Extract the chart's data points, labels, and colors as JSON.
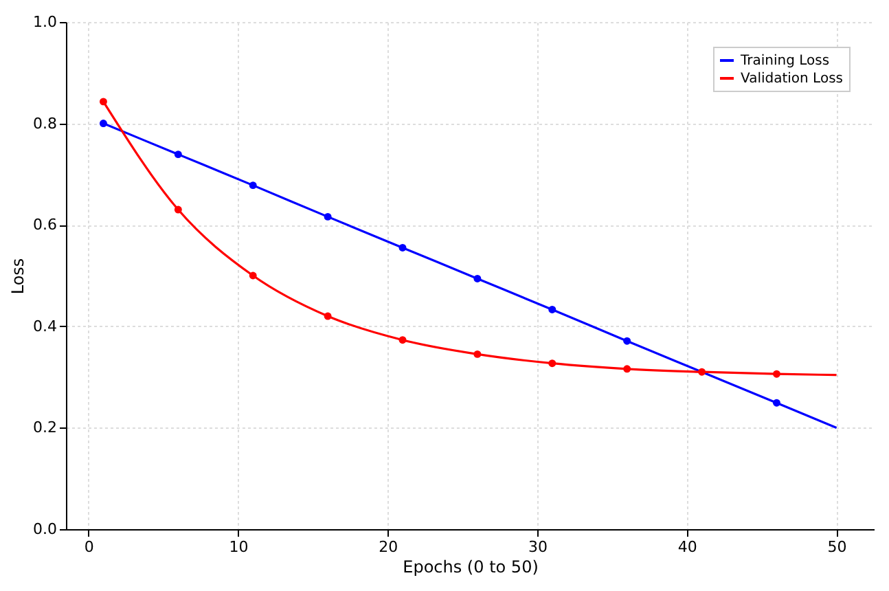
{
  "chart_data": {
    "type": "line",
    "xlabel": "Epochs (0 to 50)",
    "ylabel": "Loss",
    "xlim": [
      -1.5,
      52.5
    ],
    "ylim": [
      0,
      1.0
    ],
    "xticks": [
      0,
      10,
      20,
      30,
      40,
      50
    ],
    "yticks": [
      {
        "value": 0,
        "label": "0.0"
      },
      0.2,
      0.4,
      0.6,
      0.8,
      {
        "value": 1,
        "label": "1.0"
      }
    ],
    "grid": true,
    "legend": "top right",
    "line_style": "solid",
    "series": [
      {
        "name": "Training Loss",
        "color": "#0000ff",
        "x": [
          1,
          6,
          11,
          16,
          21,
          26,
          31,
          36,
          41,
          46,
          50
        ],
        "values": [
          0.8,
          0.739,
          0.678,
          0.616,
          0.555,
          0.494,
          0.433,
          0.371,
          0.31,
          0.249,
          0.2
        ]
      },
      {
        "name": "Validation Loss",
        "color": "#ff0000",
        "x": [
          1,
          6,
          11,
          16,
          21,
          26,
          31,
          36,
          41,
          46,
          50
        ],
        "values": [
          0.843,
          0.63,
          0.5,
          0.42,
          0.373,
          0.345,
          0.327,
          0.316,
          0.31,
          0.306,
          0.304
        ]
      },
      {
        "color": "#0000ff",
        "type": "scatter",
        "marker": "circle",
        "x": [
          1,
          6,
          11,
          16,
          21,
          26,
          31,
          36,
          41,
          46
        ],
        "values": [
          0.8,
          0.739,
          0.678,
          0.616,
          0.555,
          0.494,
          0.433,
          0.371,
          null,
          0.249
        ]
      },
      {
        "color": "#ff0000",
        "type": "scatter",
        "marker": "circle",
        "x": [
          1,
          6,
          11,
          16,
          21,
          26,
          31,
          36,
          41,
          46
        ],
        "values": [
          0.843,
          0.63,
          0.5,
          0.42,
          0.373,
          0.345,
          0.327,
          0.316,
          0.31,
          0.306
        ]
      }
    ]
  }
}
